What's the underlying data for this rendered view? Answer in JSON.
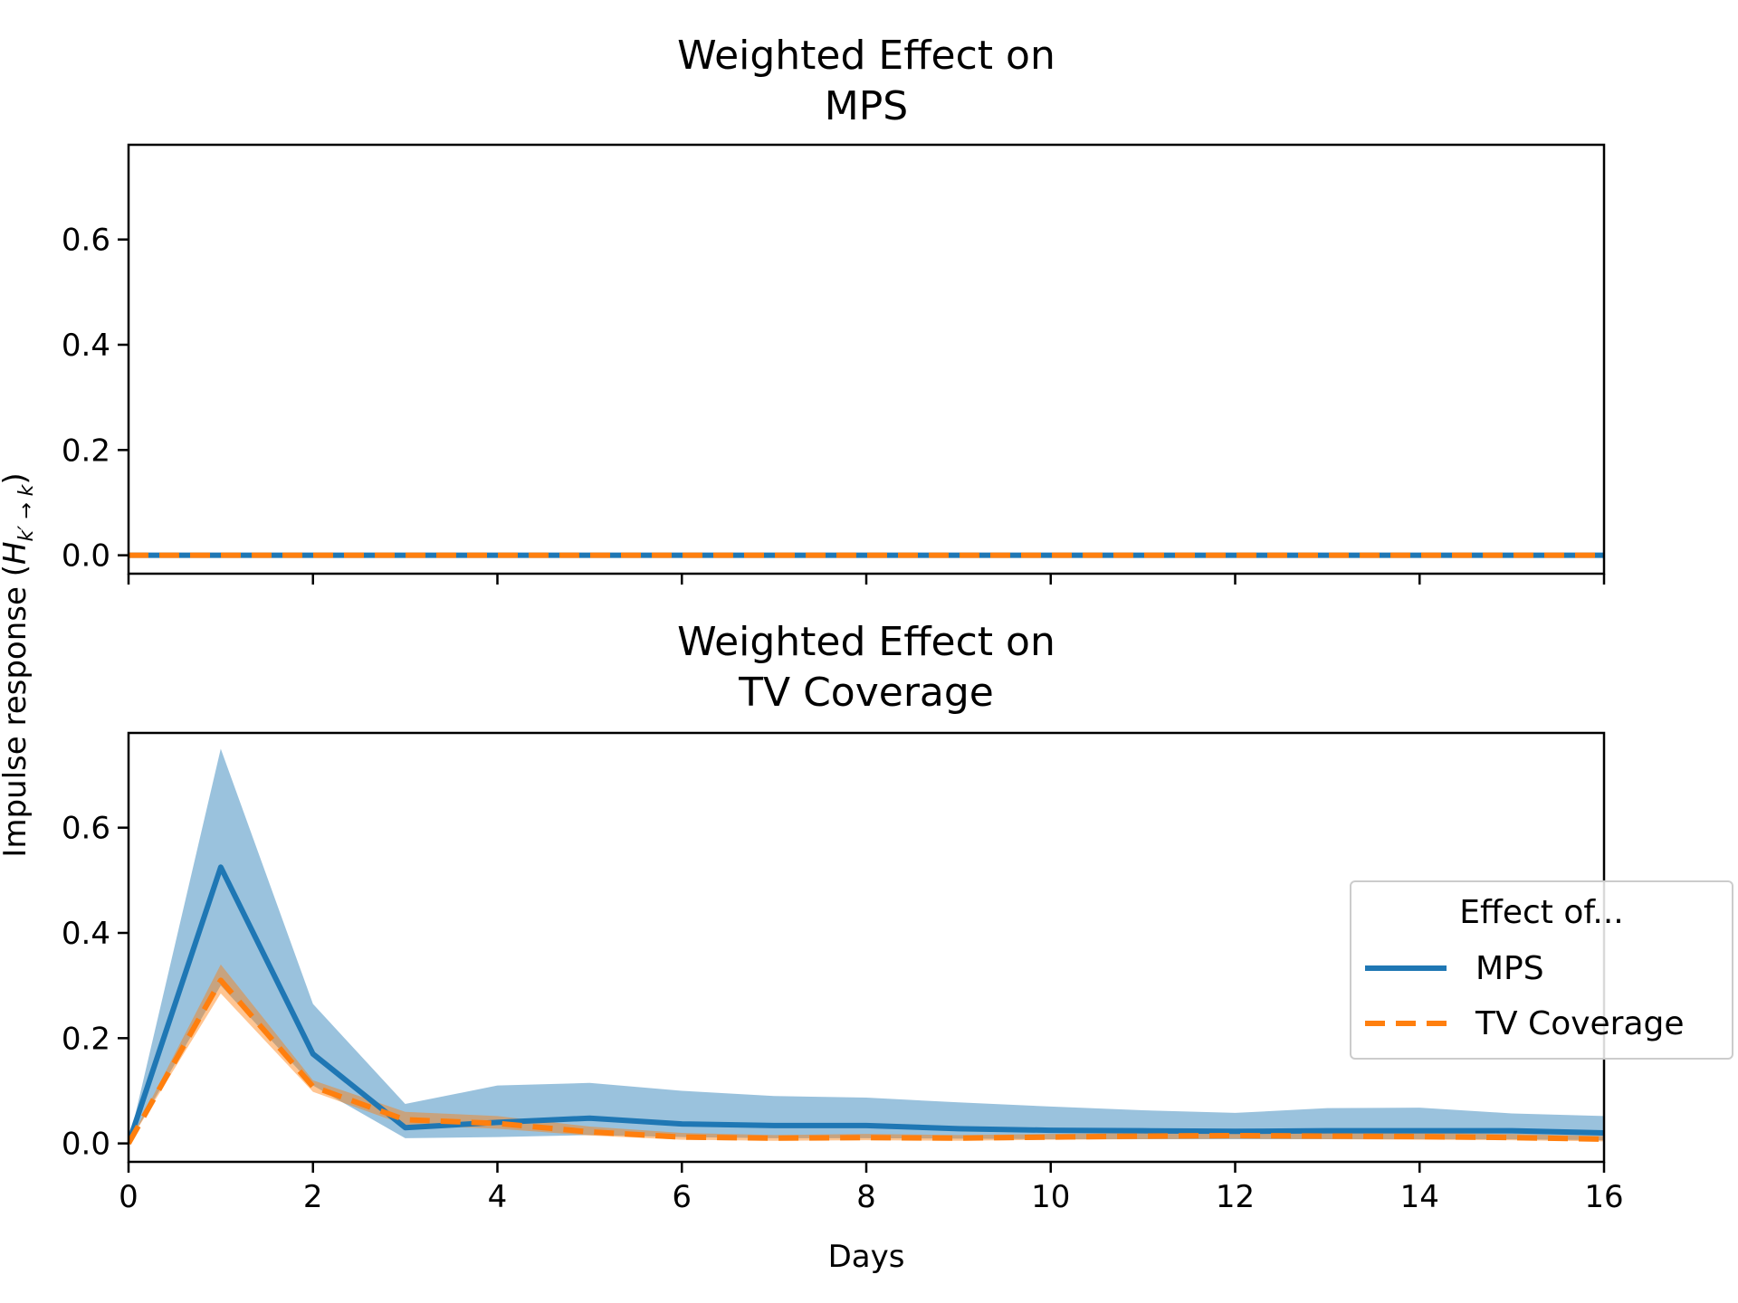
{
  "ylabel": "Impulse response (",
  "ylabel_math": "H",
  "ylabel_sub": "k′ → k",
  "ylabel_close": ")",
  "colors": {
    "mps": "#1f77b4",
    "tv": "#ff7f0e",
    "mps_band": "#1f77b4",
    "tv_band": "#ff7f0e"
  },
  "legend": {
    "title": "Effect of...",
    "placement": "center-right",
    "entries": [
      "MPS",
      "TV Coverage"
    ]
  },
  "chart_data": [
    {
      "type": "line",
      "title": [
        "Weighted Effect on",
        "MPS"
      ],
      "xlabel": "",
      "xlim": [
        0,
        16
      ],
      "ylim": [
        -0.035,
        0.78
      ],
      "xticks": [
        0,
        2,
        4,
        6,
        8,
        10,
        12,
        14,
        16
      ],
      "show_xtick_labels": false,
      "yticks": [
        0.0,
        0.2,
        0.4,
        0.6
      ],
      "ytick_labels": [
        "0.0",
        "0.2",
        "0.4",
        "0.6"
      ],
      "grid": false,
      "x": [
        0,
        1,
        2,
        3,
        4,
        5,
        6,
        7,
        8,
        9,
        10,
        11,
        12,
        13,
        14,
        15,
        16
      ],
      "series": [
        {
          "name": "MPS",
          "style": "solid",
          "values": [
            0,
            0,
            0,
            0,
            0,
            0,
            0,
            0,
            0,
            0,
            0,
            0,
            0,
            0,
            0,
            0,
            0
          ],
          "lower": [
            0,
            0,
            0,
            0,
            0,
            0,
            0,
            0,
            0,
            0,
            0,
            0,
            0,
            0,
            0,
            0,
            0
          ],
          "upper": [
            0,
            0,
            0,
            0,
            0,
            0,
            0,
            0,
            0,
            0,
            0,
            0,
            0,
            0,
            0,
            0,
            0
          ]
        },
        {
          "name": "TV Coverage",
          "style": "dashed",
          "values": [
            0,
            0,
            0,
            0,
            0,
            0,
            0,
            0,
            0,
            0,
            0,
            0,
            0,
            0,
            0,
            0,
            0
          ],
          "lower": [
            0,
            0,
            0,
            0,
            0,
            0,
            0,
            0,
            0,
            0,
            0,
            0,
            0,
            0,
            0,
            0,
            0
          ],
          "upper": [
            0,
            0,
            0,
            0,
            0,
            0,
            0,
            0,
            0,
            0,
            0,
            0,
            0,
            0,
            0,
            0,
            0
          ]
        }
      ]
    },
    {
      "type": "line",
      "title": [
        "Weighted Effect on",
        "TV Coverage"
      ],
      "xlabel": "Days",
      "xlim": [
        0,
        16
      ],
      "ylim": [
        -0.035,
        0.78
      ],
      "xticks": [
        0,
        2,
        4,
        6,
        8,
        10,
        12,
        14,
        16
      ],
      "xtick_labels": [
        "0",
        "2",
        "4",
        "6",
        "8",
        "10",
        "12",
        "14",
        "16"
      ],
      "show_xtick_labels": true,
      "yticks": [
        0.0,
        0.2,
        0.4,
        0.6
      ],
      "ytick_labels": [
        "0.0",
        "0.2",
        "0.4",
        "0.6"
      ],
      "grid": false,
      "x": [
        0,
        1,
        2,
        3,
        4,
        5,
        6,
        7,
        8,
        9,
        10,
        11,
        12,
        13,
        14,
        15,
        16
      ],
      "series": [
        {
          "name": "MPS",
          "style": "solid",
          "values": [
            0.0,
            0.525,
            0.17,
            0.03,
            0.04,
            0.048,
            0.037,
            0.034,
            0.034,
            0.028,
            0.025,
            0.024,
            0.023,
            0.024,
            0.024,
            0.024,
            0.02
          ],
          "lower": [
            0.0,
            0.3,
            0.11,
            0.01,
            0.012,
            0.016,
            0.012,
            0.01,
            0.01,
            0.009,
            0.008,
            0.008,
            0.008,
            0.008,
            0.008,
            0.008,
            0.006
          ],
          "upper": [
            0.0,
            0.75,
            0.265,
            0.075,
            0.11,
            0.115,
            0.1,
            0.09,
            0.087,
            0.078,
            0.07,
            0.063,
            0.058,
            0.067,
            0.068,
            0.057,
            0.052
          ]
        },
        {
          "name": "TV Coverage",
          "style": "dashed",
          "values": [
            0.0,
            0.31,
            0.108,
            0.045,
            0.038,
            0.022,
            0.012,
            0.01,
            0.011,
            0.01,
            0.012,
            0.014,
            0.015,
            0.014,
            0.013,
            0.011,
            0.008
          ],
          "lower": [
            0.0,
            0.285,
            0.098,
            0.035,
            0.028,
            0.015,
            0.007,
            0.005,
            0.006,
            0.005,
            0.007,
            0.008,
            0.009,
            0.008,
            0.007,
            0.006,
            0.004
          ],
          "upper": [
            0.0,
            0.34,
            0.12,
            0.06,
            0.052,
            0.032,
            0.02,
            0.016,
            0.018,
            0.016,
            0.018,
            0.02,
            0.021,
            0.02,
            0.02,
            0.018,
            0.014
          ]
        }
      ]
    }
  ]
}
